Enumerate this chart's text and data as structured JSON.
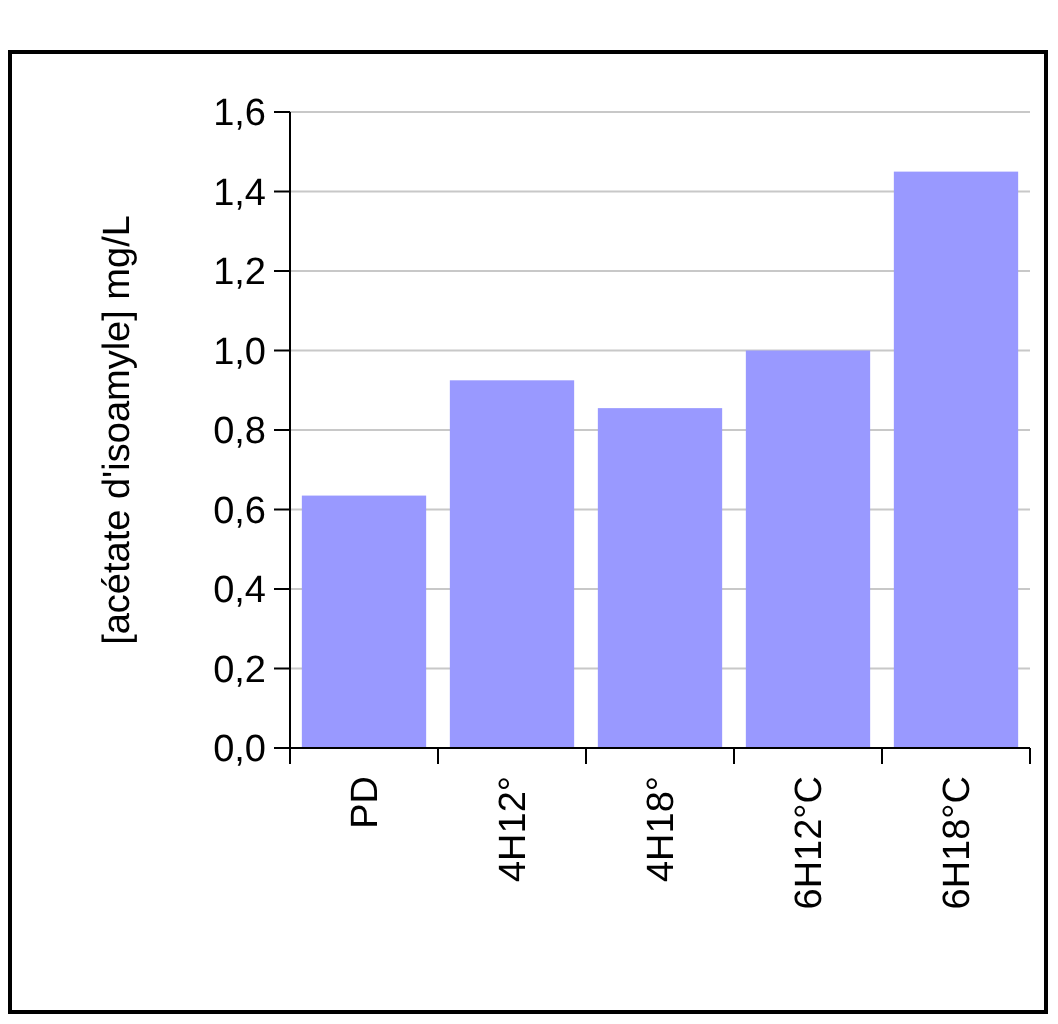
{
  "chart_data": {
    "type": "bar",
    "ylabel": "[acétate d'isoamyle] mg/L",
    "categories": [
      "PD",
      "4H12°",
      "4H18°",
      "6H12°C",
      "6H18°C"
    ],
    "values": [
      0.635,
      0.925,
      0.855,
      1.0,
      1.45
    ],
    "color": "#9999ff",
    "ylim": [
      0,
      1.6
    ],
    "yticks": [
      {
        "value": 0,
        "label": "0,0"
      },
      {
        "value": 0.2,
        "label": "0,2"
      },
      {
        "value": 0.4,
        "label": "0,4"
      },
      {
        "value": 0.6,
        "label": "0,6"
      },
      {
        "value": 0.8,
        "label": "0,8"
      },
      {
        "value": 1,
        "label": "1,0"
      },
      {
        "value": 1.2,
        "label": "1,2"
      },
      {
        "value": 1.4,
        "label": "1,4"
      },
      {
        "value": 1.6,
        "label": "1,6"
      }
    ],
    "grid": "y"
  }
}
